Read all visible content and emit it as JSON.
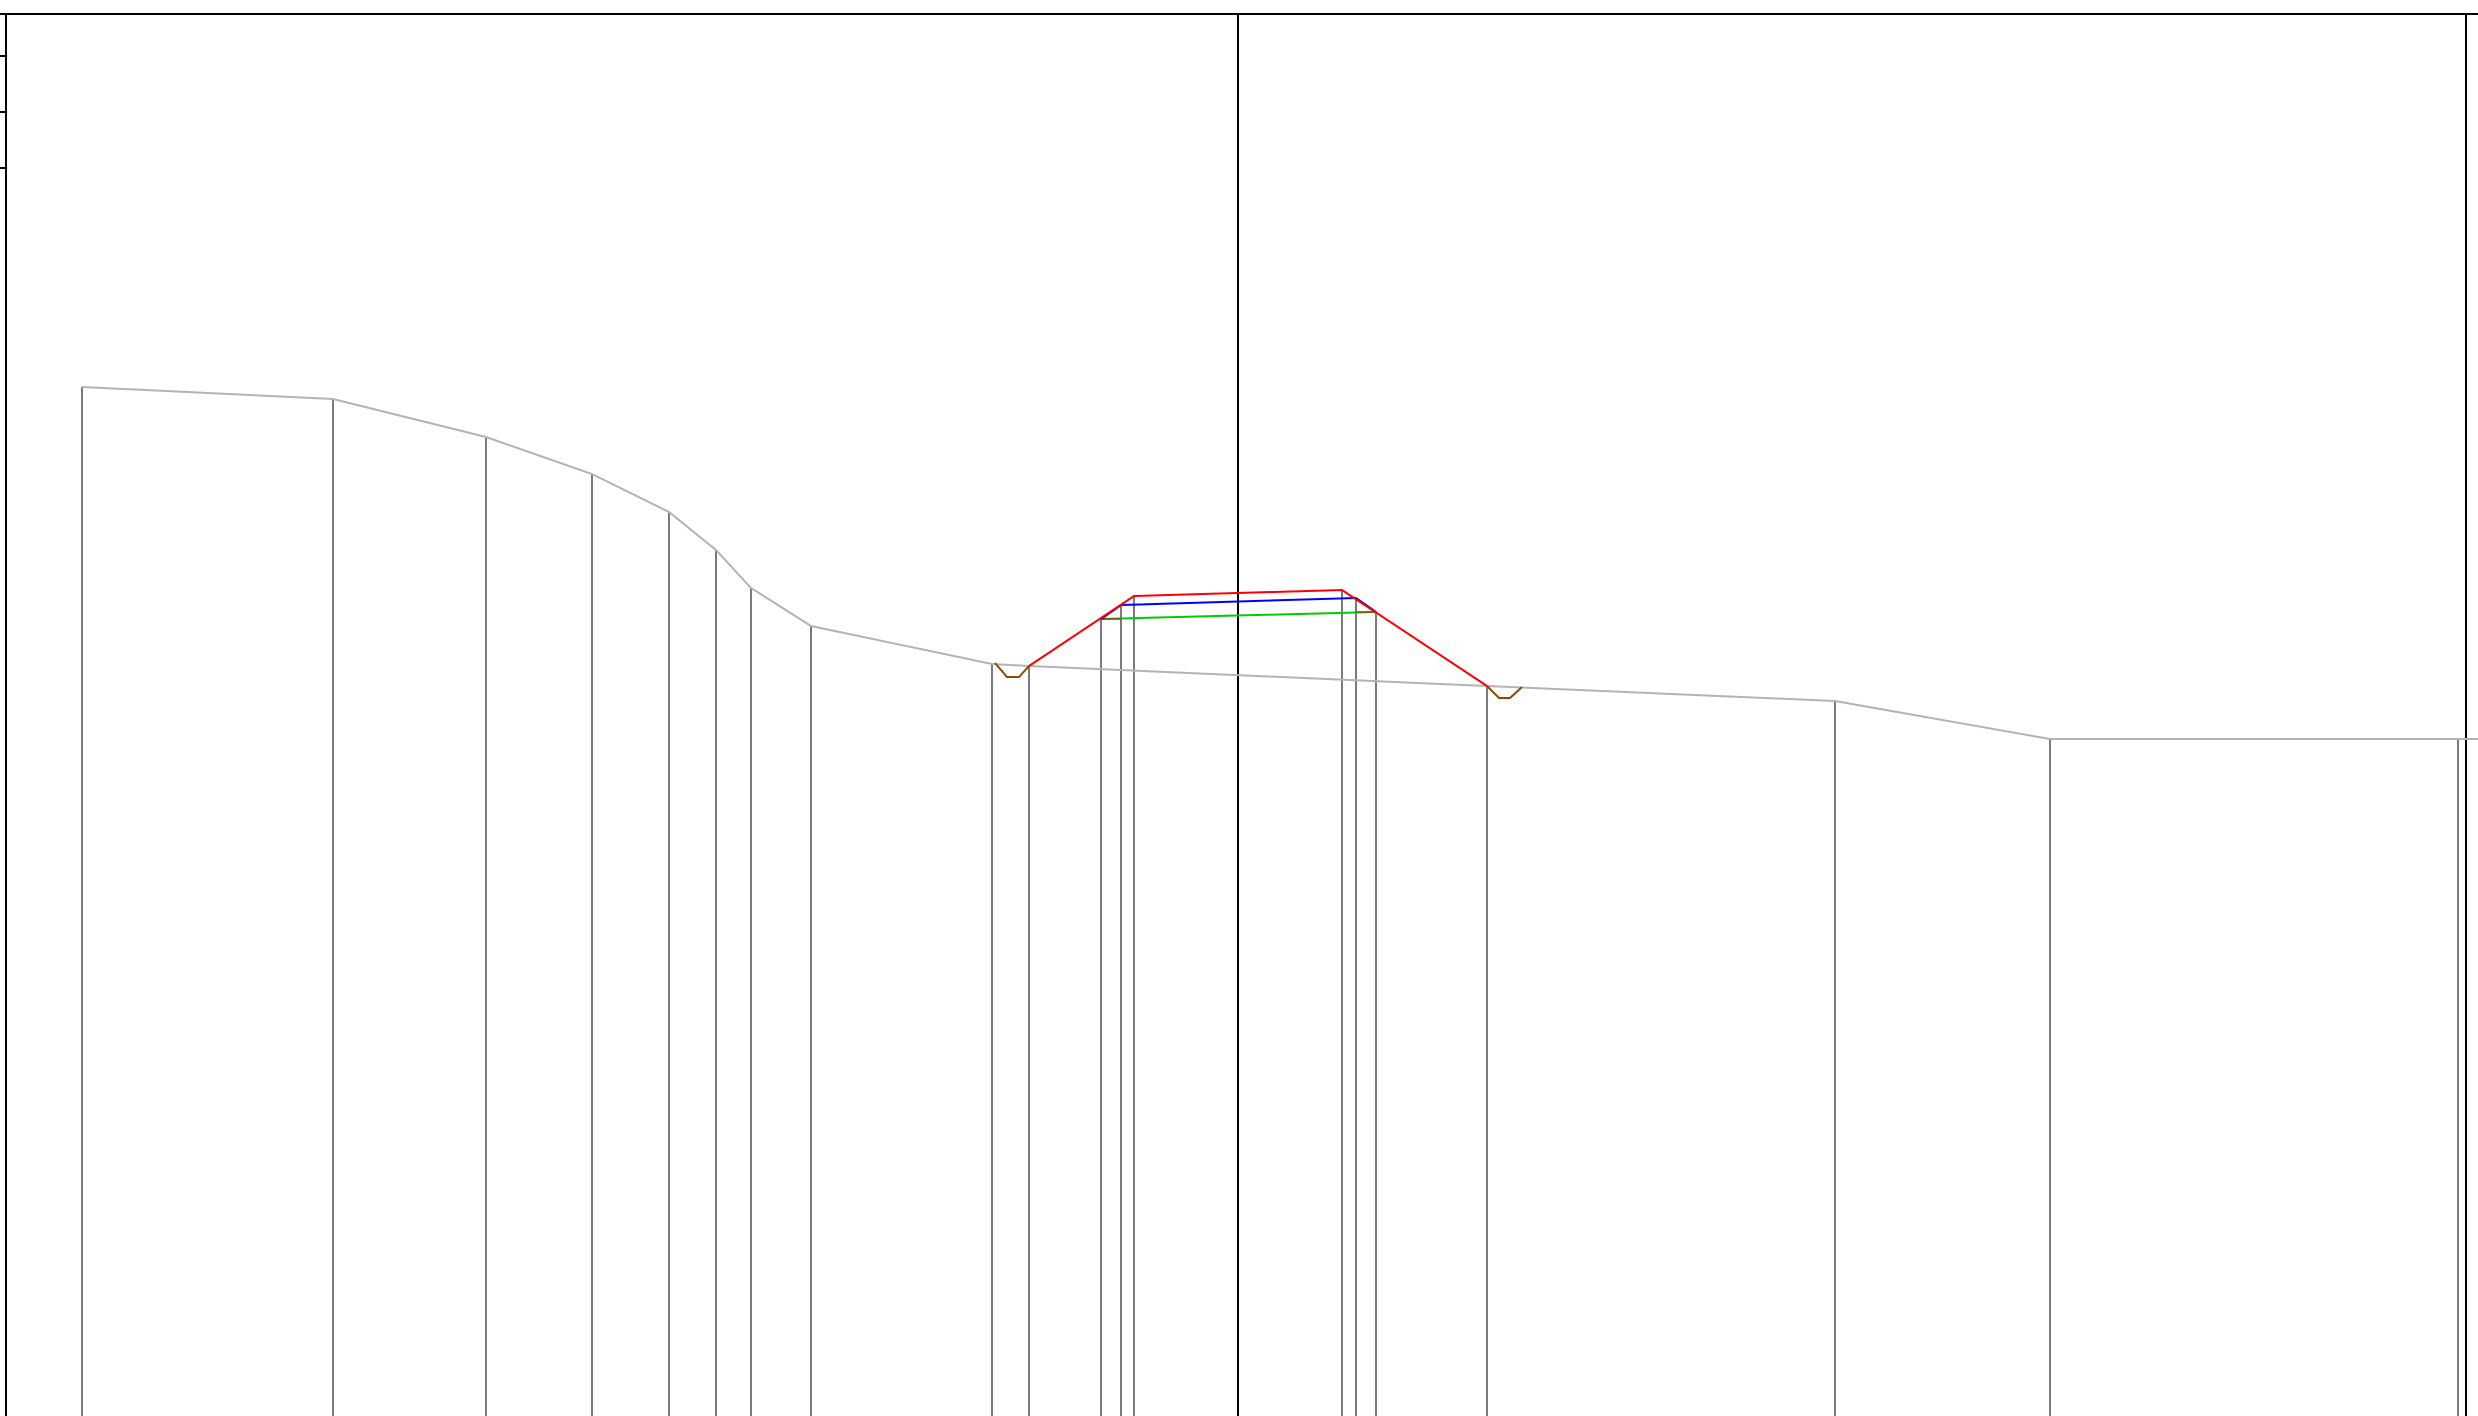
{
  "view": {
    "title": "",
    "colors": {
      "background": "#ffffff",
      "frame": "#000000",
      "centerline": "#000000",
      "ground": "#b3b3b3",
      "offset_lines": "#7a7a7a",
      "design_surface": "#ff0000",
      "subgrade": "#0000ff",
      "base": "#00cc00",
      "ditch": "#8a4b00"
    }
  }
}
